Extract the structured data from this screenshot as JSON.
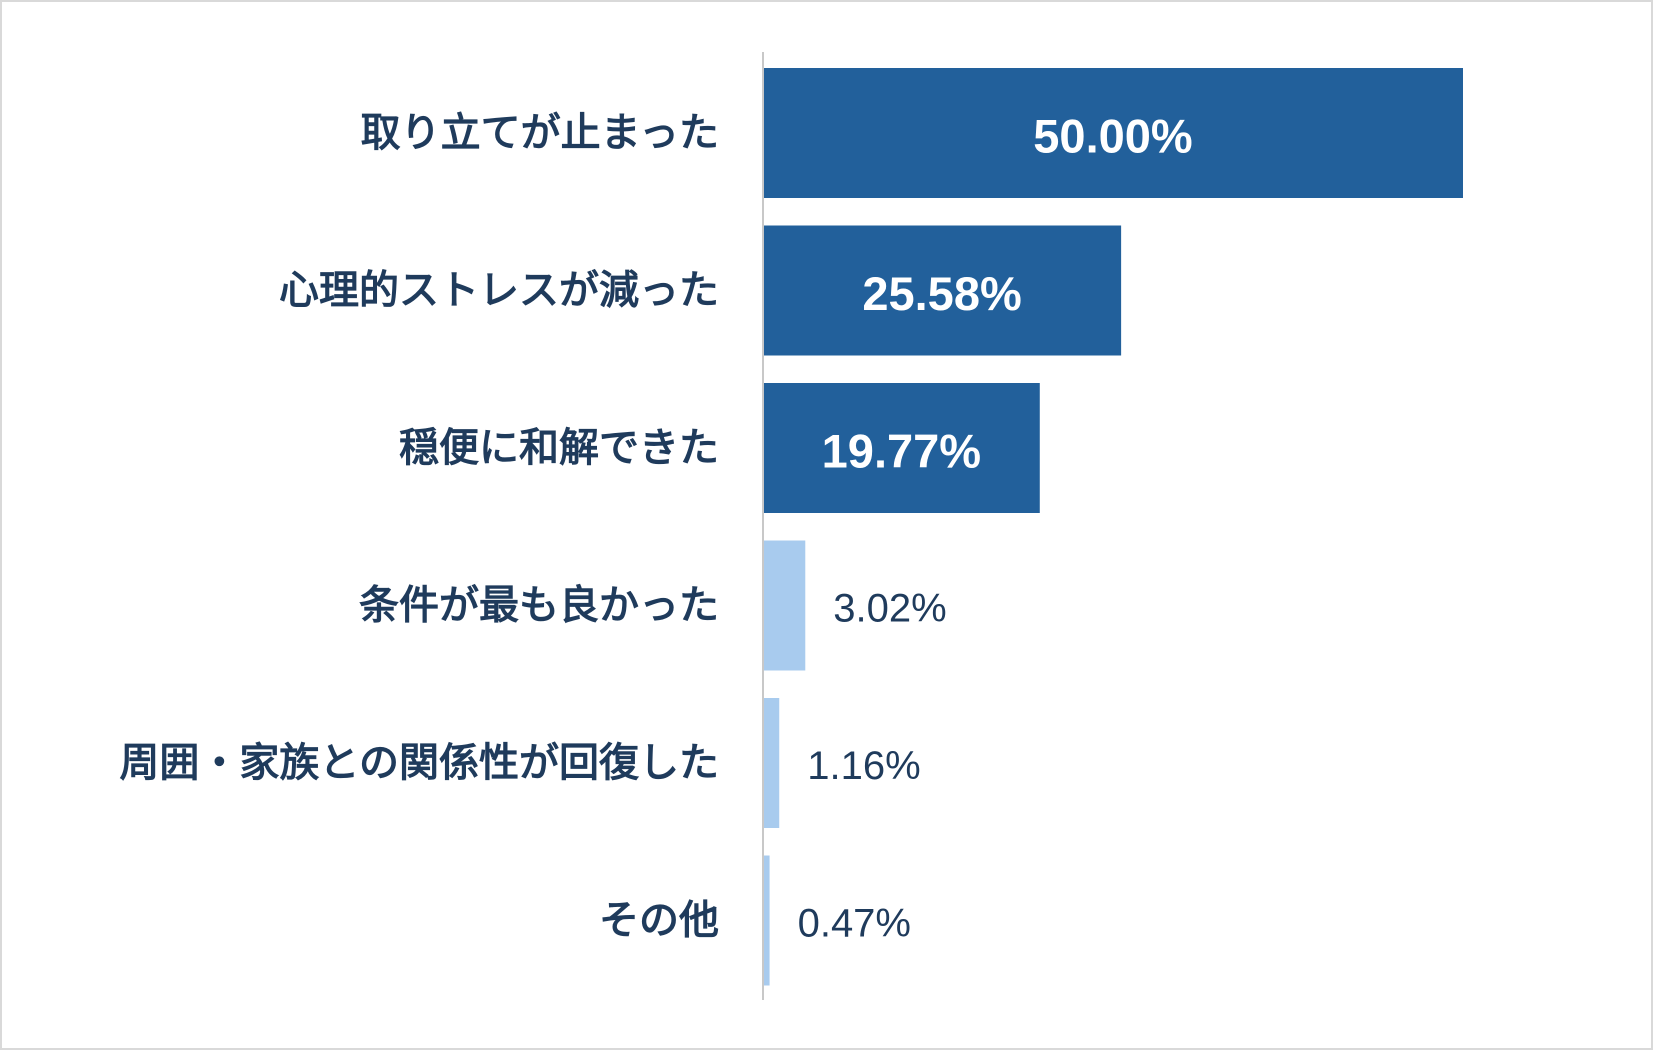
{
  "chart_data": {
    "type": "bar",
    "orientation": "horizontal",
    "categories": [
      "取り立てが止まった",
      "心理的ストレスが減った",
      "穏便に和解できた",
      "条件が最も良かった",
      "周囲・家族との関係性が回復した",
      "その他"
    ],
    "values": [
      50.0,
      25.58,
      19.77,
      3.02,
      1.16,
      0.47
    ],
    "value_labels": [
      "50.00%",
      "25.58%",
      "19.77%",
      "3.02%",
      "1.16%",
      "0.47%"
    ],
    "title": "",
    "xlabel": "",
    "ylabel": "",
    "xlim": [
      0,
      50
    ],
    "grid": false,
    "legend": "none",
    "colors": {
      "highlight": "#22609b",
      "muted": "#a8cbee",
      "axis": "#c8c8c8",
      "label_text": "#1f3b5c",
      "inside_text": "#ffffff"
    },
    "highlighted_top_n": 3
  }
}
